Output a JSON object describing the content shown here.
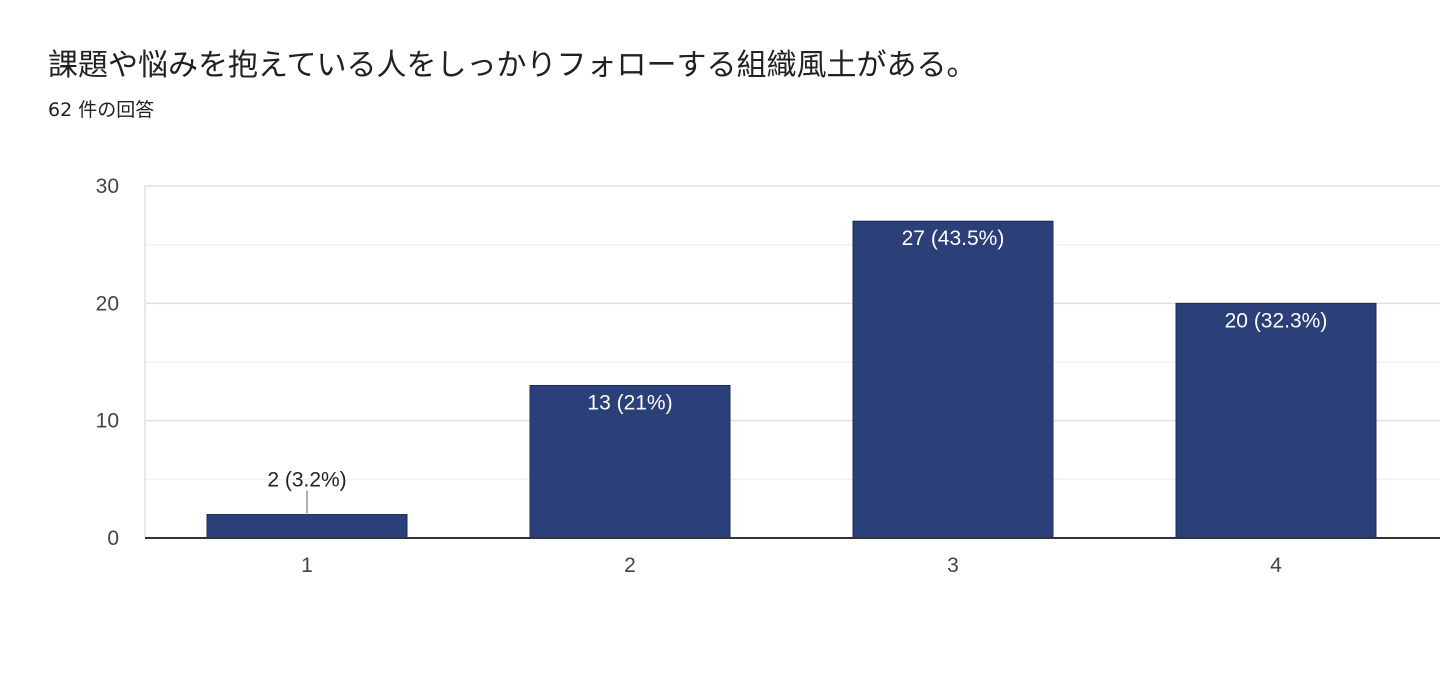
{
  "header": {
    "title": "課題や悩みを抱えている人をしっかりフォローする組織風土がある。",
    "response_count": "62 件の回答"
  },
  "chart_data": {
    "type": "bar",
    "categories": [
      "1",
      "2",
      "3",
      "4"
    ],
    "values": [
      2,
      13,
      27,
      20
    ],
    "data_labels": [
      "2 (3.2%)",
      "13 (21%)",
      "27 (43.5%)",
      "20 (32.3%)"
    ],
    "ylim": [
      0,
      30
    ],
    "yticks": [
      0,
      10,
      20,
      30
    ],
    "grid": true,
    "legend": "none",
    "colors": {
      "bar": "#2b3f78",
      "grid_major": "#e0e0e0",
      "grid_minor": "#f1f1f1",
      "axis": "#333333",
      "label_inside": "#ffffff",
      "label_outside": "#222222"
    }
  }
}
